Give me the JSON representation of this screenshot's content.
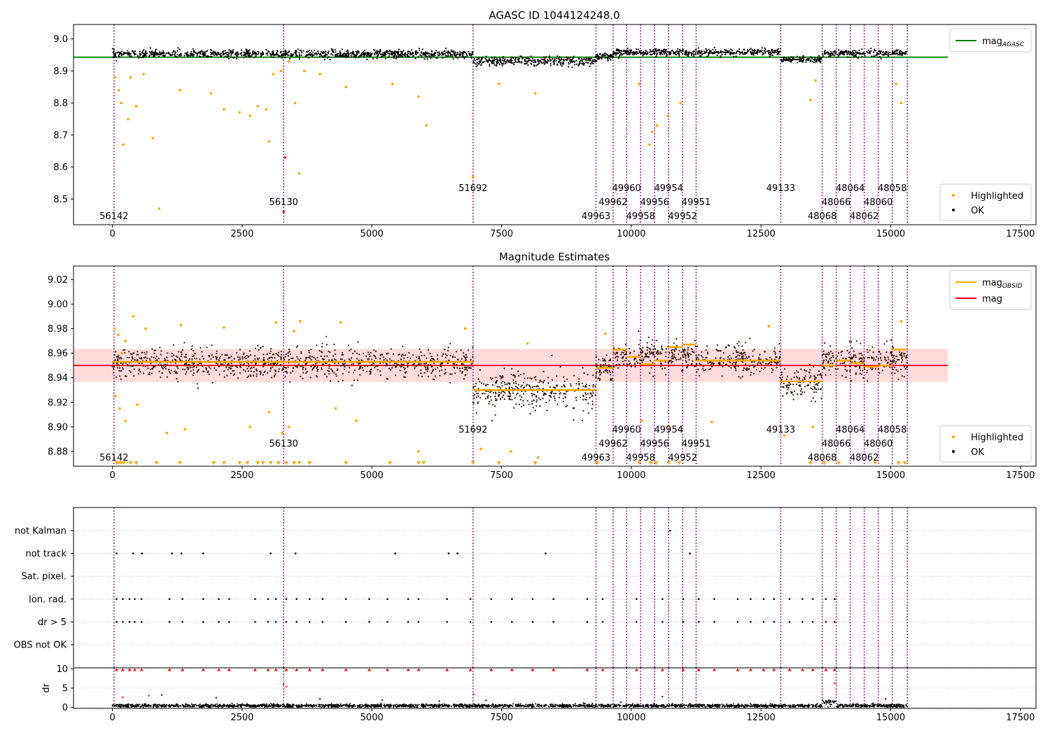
{
  "chart_data": [
    {
      "type": "scatter",
      "title": "AGASC ID 1044124248.0",
      "xlim": [
        -750,
        17800
      ],
      "ylim": [
        8.42,
        9.045
      ],
      "xticks": [
        0,
        2500,
        5000,
        7500,
        10000,
        12500,
        15000,
        17500
      ],
      "yticks": [
        8.5,
        8.6,
        8.7,
        8.8,
        8.9,
        9.0
      ],
      "ytick_format": 1,
      "legend": {
        "placement": "top-right",
        "entries": [
          {
            "label": "mag",
            "sub": "AGASC",
            "color": "#008000",
            "kind": "line"
          }
        ]
      },
      "legend2": {
        "placement": "lower-right",
        "entries": [
          {
            "label": "Highlighted",
            "color": "#ffa500"
          },
          {
            "label": "OK",
            "color": "#000000"
          }
        ]
      },
      "hlines": [
        {
          "name": "mag_AGASC",
          "y": 8.943,
          "x": [
            -750,
            16100
          ],
          "color": "#008000"
        }
      ],
      "ok_segments": [
        {
          "x0": 0,
          "x1": 6950,
          "mean": 8.953,
          "spread": 0.011
        },
        {
          "x0": 6950,
          "x1": 9320,
          "mean": 8.93,
          "spread": 0.013
        },
        {
          "x0": 9320,
          "x1": 9650,
          "mean": 8.945,
          "spread": 0.009
        },
        {
          "x0": 9650,
          "x1": 12880,
          "mean": 8.958,
          "spread": 0.01
        },
        {
          "x0": 12880,
          "x1": 13680,
          "mean": 8.935,
          "spread": 0.009
        },
        {
          "x0": 13680,
          "x1": 15320,
          "mean": 8.955,
          "spread": 0.009
        }
      ],
      "highlighted": [
        [
          50,
          8.88
        ],
        [
          120,
          8.84
        ],
        [
          170,
          8.8
        ],
        [
          210,
          8.67
        ],
        [
          300,
          8.75
        ],
        [
          350,
          8.88
        ],
        [
          460,
          8.79
        ],
        [
          600,
          8.89
        ],
        [
          780,
          8.69
        ],
        [
          900,
          8.47
        ],
        [
          1300,
          8.84
        ],
        [
          1900,
          8.83
        ],
        [
          2150,
          8.78
        ],
        [
          2450,
          8.77
        ],
        [
          2650,
          8.76
        ],
        [
          2800,
          8.79
        ],
        [
          2960,
          8.78
        ],
        [
          3020,
          8.68
        ],
        [
          3100,
          8.89
        ],
        [
          3250,
          8.9
        ],
        [
          3400,
          8.93
        ],
        [
          3520,
          8.8
        ],
        [
          3600,
          8.58
        ],
        [
          3700,
          8.9
        ],
        [
          4000,
          8.89
        ],
        [
          4500,
          8.85
        ],
        [
          5400,
          8.86
        ],
        [
          5900,
          8.82
        ],
        [
          6050,
          8.73
        ],
        [
          6950,
          8.57
        ],
        [
          7450,
          8.86
        ],
        [
          8150,
          8.83
        ],
        [
          10150,
          8.86
        ],
        [
          10350,
          8.67
        ],
        [
          10400,
          8.71
        ],
        [
          10500,
          8.73
        ],
        [
          10700,
          8.76
        ],
        [
          10950,
          8.8
        ],
        [
          13450,
          8.81
        ],
        [
          13550,
          8.87
        ],
        [
          15100,
          8.86
        ],
        [
          15200,
          8.8
        ]
      ],
      "flagged_red": [
        [
          3330,
          8.63
        ],
        [
          3300,
          8.46
        ]
      ],
      "obsids": [
        {
          "x": 30,
          "label": "56142",
          "row": 3
        },
        {
          "x": 3300,
          "label": "56130",
          "row": 2
        },
        {
          "x": 6950,
          "label": "51692",
          "row": 1
        },
        {
          "x": 9320,
          "label": "49963",
          "row": 3
        },
        {
          "x": 9650,
          "label": "49962",
          "row": 2
        },
        {
          "x": 9910,
          "label": "49960",
          "row": 1
        },
        {
          "x": 10180,
          "label": "49958",
          "row": 3
        },
        {
          "x": 10450,
          "label": "49956",
          "row": 2
        },
        {
          "x": 10720,
          "label": "49954",
          "row": 1
        },
        {
          "x": 10990,
          "label": "49952",
          "row": 3
        },
        {
          "x": 11250,
          "label": "49951",
          "row": 2
        },
        {
          "x": 12880,
          "label": "49133",
          "row": 1
        },
        {
          "x": 13680,
          "label": "48068",
          "row": 3
        },
        {
          "x": 13950,
          "label": "48066",
          "row": 2
        },
        {
          "x": 14220,
          "label": "48064",
          "row": 1
        },
        {
          "x": 14490,
          "label": "48062",
          "row": 3
        },
        {
          "x": 14760,
          "label": "48060",
          "row": 2
        },
        {
          "x": 15030,
          "label": "48058",
          "row": 1
        },
        {
          "x": 15320,
          "label": "",
          "row": 0
        }
      ]
    },
    {
      "type": "scatter",
      "title": "Magnitude Estimates",
      "xlim": [
        -750,
        17800
      ],
      "ylim": [
        8.868,
        9.031
      ],
      "xticks": [
        0,
        2500,
        5000,
        7500,
        10000,
        12500,
        15000,
        17500
      ],
      "yticks": [
        8.88,
        8.9,
        8.92,
        8.94,
        8.96,
        8.98,
        9.0,
        9.02
      ],
      "ytick_format": 2,
      "legend": {
        "placement": "top-right",
        "entries": [
          {
            "label": "mag",
            "sub": "OBSID",
            "color": "#ffa500",
            "kind": "line"
          },
          {
            "label": "mag",
            "sub": "",
            "color": "#ff0000",
            "kind": "line"
          }
        ]
      },
      "legend2": {
        "placement": "lower-right",
        "entries": [
          {
            "label": "Highlighted",
            "color": "#ffa500"
          },
          {
            "label": "OK",
            "color": "#000000"
          }
        ]
      },
      "mag_band": {
        "center": 8.95,
        "half_width": 0.0135,
        "x": [
          -750,
          16100
        ],
        "color": "#ffcccc"
      },
      "hlines": [
        {
          "name": "mag",
          "y": 8.95,
          "x": [
            -750,
            16100
          ],
          "color": "#ff0000"
        }
      ],
      "obsid_means": [
        {
          "x0": 0,
          "x1": 6950,
          "y": 8.953
        },
        {
          "x0": 6950,
          "x1": 9320,
          "y": 8.93
        },
        {
          "x0": 9320,
          "x1": 9650,
          "y": 8.948
        },
        {
          "x0": 9650,
          "x1": 9910,
          "y": 8.963
        },
        {
          "x0": 9910,
          "x1": 10180,
          "y": 8.957
        },
        {
          "x0": 10180,
          "x1": 10450,
          "y": 8.951
        },
        {
          "x0": 10450,
          "x1": 10720,
          "y": 8.954
        },
        {
          "x0": 10720,
          "x1": 10990,
          "y": 8.965
        },
        {
          "x0": 10990,
          "x1": 11250,
          "y": 8.967
        },
        {
          "x0": 11250,
          "x1": 12880,
          "y": 8.954
        },
        {
          "x0": 12880,
          "x1": 13680,
          "y": 8.937
        },
        {
          "x0": 13680,
          "x1": 13950,
          "y": 8.95
        },
        {
          "x0": 13950,
          "x1": 14220,
          "y": 8.954
        },
        {
          "x0": 14220,
          "x1": 14490,
          "y": 8.952
        },
        {
          "x0": 14490,
          "x1": 14760,
          "y": 8.949
        },
        {
          "x0": 14760,
          "x1": 15030,
          "y": 8.95
        },
        {
          "x0": 15030,
          "x1": 15320,
          "y": 8.963
        }
      ],
      "ok_segments": [
        {
          "x0": 0,
          "x1": 6950,
          "mean": 8.952,
          "spread": 0.011
        },
        {
          "x0": 6950,
          "x1": 9320,
          "mean": 8.929,
          "spread": 0.014
        },
        {
          "x0": 9320,
          "x1": 9650,
          "mean": 8.948,
          "spread": 0.01
        },
        {
          "x0": 9650,
          "x1": 11250,
          "mean": 8.958,
          "spread": 0.011
        },
        {
          "x0": 11250,
          "x1": 12880,
          "mean": 8.954,
          "spread": 0.011
        },
        {
          "x0": 12880,
          "x1": 13680,
          "mean": 8.935,
          "spread": 0.011
        },
        {
          "x0": 13680,
          "x1": 15320,
          "mean": 8.954,
          "spread": 0.011
        }
      ],
      "highlighted": [
        [
          40,
          8.98
        ],
        [
          110,
          8.975
        ],
        [
          180,
          8.96
        ],
        [
          250,
          8.97
        ],
        [
          400,
          8.99
        ],
        [
          640,
          8.98
        ],
        [
          1320,
          8.983
        ],
        [
          2150,
          8.981
        ],
        [
          3150,
          8.985
        ],
        [
          3500,
          8.978
        ],
        [
          3620,
          8.986
        ],
        [
          4400,
          8.985
        ],
        [
          6800,
          8.98
        ],
        [
          8000,
          8.968
        ],
        [
          9500,
          8.976
        ],
        [
          12650,
          8.982
        ],
        [
          15200,
          8.986
        ],
        [
          60,
          8.925
        ],
        [
          140,
          8.915
        ],
        [
          250,
          8.905
        ],
        [
          480,
          8.918
        ],
        [
          1050,
          8.895
        ],
        [
          1400,
          8.898
        ],
        [
          2650,
          8.9
        ],
        [
          3020,
          8.912
        ],
        [
          3270,
          8.895
        ],
        [
          3400,
          8.9
        ],
        [
          4300,
          8.915
        ],
        [
          4700,
          8.905
        ],
        [
          5900,
          8.88
        ],
        [
          7100,
          8.882
        ],
        [
          7680,
          8.88
        ],
        [
          8200,
          8.875
        ],
        [
          10200,
          8.905
        ],
        [
          10700,
          8.9
        ],
        [
          11550,
          8.904
        ],
        [
          12950,
          8.893
        ],
        [
          13500,
          8.9
        ]
      ],
      "below_range_markers": [
        80,
        120,
        170,
        220,
        350,
        460,
        850,
        1300,
        1950,
        2150,
        2450,
        2600,
        2800,
        2900,
        3050,
        3200,
        3350,
        3500,
        3600,
        3800,
        4500,
        5350,
        5900,
        6000,
        6950,
        7450,
        8150,
        9350,
        10150,
        10380,
        10480,
        10720,
        10920,
        13450,
        13720,
        14000,
        14700,
        15150,
        15270
      ],
      "obsids": [
        {
          "x": 30,
          "label": "56142",
          "row": 3
        },
        {
          "x": 3300,
          "label": "56130",
          "row": 2
        },
        {
          "x": 6950,
          "label": "51692",
          "row": 1
        },
        {
          "x": 9320,
          "label": "49963",
          "row": 3
        },
        {
          "x": 9650,
          "label": "49962",
          "row": 2
        },
        {
          "x": 9910,
          "label": "49960",
          "row": 1
        },
        {
          "x": 10180,
          "label": "49958",
          "row": 3
        },
        {
          "x": 10450,
          "label": "49956",
          "row": 2
        },
        {
          "x": 10720,
          "label": "49954",
          "row": 1
        },
        {
          "x": 10990,
          "label": "49952",
          "row": 3
        },
        {
          "x": 11250,
          "label": "49951",
          "row": 2
        },
        {
          "x": 12880,
          "label": "49133",
          "row": 1
        },
        {
          "x": 13680,
          "label": "48068",
          "row": 3
        },
        {
          "x": 13950,
          "label": "48066",
          "row": 2
        },
        {
          "x": 14220,
          "label": "48064",
          "row": 1
        },
        {
          "x": 14490,
          "label": "48062",
          "row": 3
        },
        {
          "x": 14760,
          "label": "48060",
          "row": 2
        },
        {
          "x": 15030,
          "label": "48058",
          "row": 1
        },
        {
          "x": 15320,
          "label": "",
          "row": 0
        }
      ]
    },
    {
      "type": "scatter",
      "title": "",
      "xlim": [
        -750,
        17800
      ],
      "flag_rows": [
        "not Kalman",
        "not track",
        "Sat. pixel.",
        "Ion. rad.",
        "dr > 5",
        "OBS not OK"
      ],
      "flag_points": {
        "not Kalman": [
          10750
        ],
        "not track": [
          80,
          400,
          570,
          1150,
          1330,
          1750,
          3050,
          3530,
          5450,
          6480,
          6650,
          8350,
          11130
        ],
        "Sat. pixel.": [],
        "Ion. rad.": [
          80,
          200,
          330,
          430,
          560,
          1100,
          1350,
          1750,
          2050,
          2250,
          2750,
          3000,
          3150,
          3350,
          3550,
          3800,
          4050,
          4500,
          4950,
          5300,
          5700,
          5900,
          6450,
          6900,
          7300,
          7700,
          8100,
          8500,
          9150,
          9450,
          10100,
          10600,
          11000,
          11300,
          11600,
          12050,
          12300,
          12550,
          12750,
          13050,
          13300,
          13500,
          13750,
          13920
        ],
        "dr > 5": [
          80,
          200,
          330,
          430,
          560,
          1100,
          1350,
          1750,
          2050,
          2250,
          2750,
          3000,
          3150,
          3350,
          3550,
          3800,
          4050,
          4500,
          4950,
          5300,
          5700,
          5900,
          6450,
          6900,
          7300,
          7700,
          8100,
          8500,
          9150,
          9450,
          10100,
          10600,
          11000,
          11300,
          11600,
          12050,
          12300,
          12550,
          12750,
          13050,
          13300,
          13500,
          13750,
          13920
        ],
        "OBS not OK": []
      },
      "vlines": [
        30,
        3300,
        6950,
        9320,
        9650,
        9910,
        10180,
        10450,
        10720,
        10990,
        11250,
        12880,
        13680,
        13950,
        14220,
        14490,
        14760,
        15030,
        15320
      ]
    },
    {
      "type": "scatter",
      "title": "",
      "xlim": [
        -750,
        17800
      ],
      "ylim": [
        -0.3,
        10.3
      ],
      "ylabel": "dr",
      "xticks": [
        0,
        2500,
        5000,
        7500,
        10000,
        12500,
        15000,
        17500
      ],
      "yticks": [
        0,
        5,
        10
      ],
      "dr_baseline": {
        "x0": 0,
        "x1": 15320,
        "mean": 0.4,
        "spread": 0.35
      },
      "dr_bumps": [
        {
          "x0": 13680,
          "x1": 13950,
          "mean": 1.2
        }
      ],
      "dr_mid": [
        [
          950,
          3.2
        ],
        [
          2000,
          2.5
        ],
        [
          4000,
          2.2
        ],
        [
          5200,
          1.9
        ],
        [
          6300,
          1.6
        ],
        [
          7200,
          1.8
        ],
        [
          9800,
          1.3
        ],
        [
          10600,
          2.8
        ],
        [
          14900,
          2.2
        ]
      ],
      "dr_red": [
        [
          200,
          2.6
        ],
        [
          700,
          3.0
        ],
        [
          3300,
          6.0
        ],
        [
          3350,
          5.4
        ],
        [
          6960,
          3.4
        ],
        [
          13920,
          6.2
        ]
      ],
      "dr_clipped": [
        80,
        200,
        330,
        430,
        560,
        1100,
        1350,
        1750,
        2050,
        2250,
        2750,
        3000,
        3150,
        3350,
        3550,
        3800,
        4050,
        4500,
        4950,
        5300,
        5700,
        5900,
        6450,
        6900,
        7300,
        7700,
        8100,
        8500,
        9150,
        9450,
        10100,
        10600,
        11000,
        11300,
        11600,
        12050,
        12300,
        12550,
        12750,
        13050,
        13300,
        13500,
        13750,
        13920
      ],
      "vlines": [
        30,
        3300,
        6950,
        9320,
        9650,
        9910,
        10180,
        10450,
        10720,
        10990,
        11250,
        12880,
        13680,
        13950,
        14220,
        14490,
        14760,
        15030,
        15320
      ]
    }
  ]
}
